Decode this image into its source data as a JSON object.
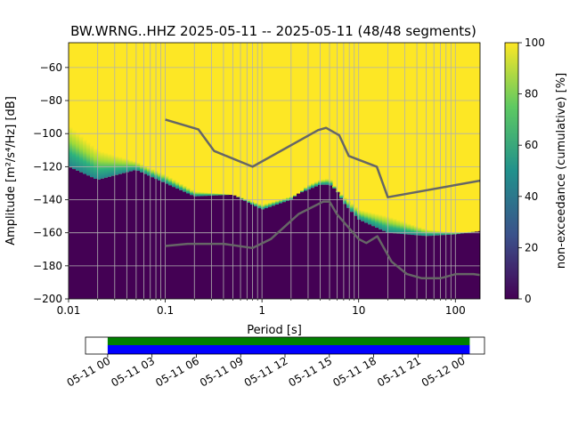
{
  "chart_data": [
    {
      "type": "heatmap",
      "title": "BW.WRNG..HHZ   2025-05-11 -- 2025-05-11  (48/48 segments)",
      "xlabel": "Period [s]",
      "ylabel": "Amplitude [m²/s⁴/Hz] [dB]",
      "xscale": "log",
      "xlim": [
        0.01,
        180
      ],
      "ylim": [
        -200,
        -45
      ],
      "xticks": [
        {
          "value": 0.01,
          "label": "0.01"
        },
        {
          "value": 0.1,
          "label": "0.1"
        },
        {
          "value": 1,
          "label": "1"
        },
        {
          "value": 10,
          "label": "10"
        },
        {
          "value": 100,
          "label": "100"
        }
      ],
      "yticks": [
        {
          "value": -60,
          "label": "−60"
        },
        {
          "value": -80,
          "label": "−80"
        },
        {
          "value": -100,
          "label": "−100"
        },
        {
          "value": -120,
          "label": "−120"
        },
        {
          "value": -140,
          "label": "−140"
        },
        {
          "value": -160,
          "label": "−160"
        },
        {
          "value": -180,
          "label": "−180"
        },
        {
          "value": -200,
          "label": "−200"
        }
      ],
      "grid": true,
      "period_samples": [
        0.01,
        0.02,
        0.05,
        0.1,
        0.2,
        0.5,
        1,
        2,
        3,
        4,
        5,
        7,
        10,
        20,
        50,
        100,
        180
      ],
      "distribution_upper_edge_db": [
        -95,
        -110,
        -117,
        -125,
        -135,
        -137,
        -143,
        -138,
        -134,
        -131,
        -131,
        -138,
        -146,
        -150,
        -158,
        -160,
        -159
      ],
      "distribution_lower_edge_db": [
        -120,
        -128,
        -122,
        -130,
        -138,
        -137,
        -146,
        -140,
        -131,
        -128,
        -127,
        -142,
        -152,
        -160,
        -162,
        -161,
        -159
      ],
      "noise_models": [
        {
          "name": "NHNM",
          "color": "#666666",
          "points": [
            [
              0.1,
              -91.5
            ],
            [
              0.22,
              -97.4
            ],
            [
              0.32,
              -110.5
            ],
            [
              0.8,
              -120
            ],
            [
              3.8,
              -97.9
            ],
            [
              4.6,
              -96.5
            ],
            [
              6.3,
              -101
            ],
            [
              7.9,
              -113.5
            ],
            [
              15.4,
              -120
            ],
            [
              20,
              -138.5
            ],
            [
              180,
              -128.5
            ]
          ]
        },
        {
          "name": "NLNM",
          "color": "#666666",
          "points": [
            [
              0.1,
              -168
            ],
            [
              0.17,
              -166.7
            ],
            [
              0.4,
              -166.7
            ],
            [
              0.8,
              -169.2
            ],
            [
              1.24,
              -163.7
            ],
            [
              2.4,
              -148.6
            ],
            [
              4.3,
              -141.1
            ],
            [
              5,
              -141.1
            ],
            [
              6,
              -149
            ],
            [
              10,
              -163.8
            ],
            [
              12,
              -166.2
            ],
            [
              15.6,
              -162.1
            ],
            [
              21.9,
              -177.5
            ],
            [
              31.6,
              -185
            ],
            [
              45,
              -187.5
            ],
            [
              70,
              -187.5
            ],
            [
              101,
              -185
            ],
            [
              154,
              -185
            ],
            [
              180,
              -185.5
            ]
          ]
        }
      ]
    },
    {
      "type": "colorbar",
      "label": "non-exceedance (cumulative) [%]",
      "range": [
        0,
        100
      ],
      "ticks": [
        {
          "value": 0,
          "label": "0"
        },
        {
          "value": 20,
          "label": "20"
        },
        {
          "value": 40,
          "label": "40"
        },
        {
          "value": 60,
          "label": "60"
        },
        {
          "value": 80,
          "label": "80"
        },
        {
          "value": 100,
          "label": "100"
        }
      ],
      "colors": [
        "#440154",
        "#3b528b",
        "#21918c",
        "#5ec962",
        "#fde725"
      ]
    },
    {
      "type": "timeline",
      "xlim_hours": [
        -1.5,
        25.5
      ],
      "coverage_hours": [
        0,
        24.5
      ],
      "colors": {
        "data": "#0000ff",
        "processed": "#008000"
      },
      "xticks": [
        {
          "value": 0,
          "label": "05-11 00"
        },
        {
          "value": 3,
          "label": "05-11 03"
        },
        {
          "value": 6,
          "label": "05-11 06"
        },
        {
          "value": 9,
          "label": "05-11 09"
        },
        {
          "value": 12,
          "label": "05-11 12"
        },
        {
          "value": 15,
          "label": "05-11 15"
        },
        {
          "value": 18,
          "label": "05-11 18"
        },
        {
          "value": 21,
          "label": "05-11 21"
        },
        {
          "value": 24,
          "label": "05-12 00"
        }
      ]
    }
  ]
}
